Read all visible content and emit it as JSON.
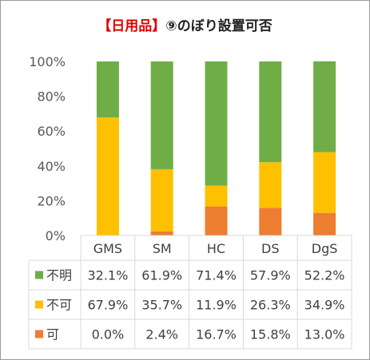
{
  "chart_data": {
    "type": "bar",
    "stacked": true,
    "percent": true,
    "title_prefix": "【日用品】",
    "title_main": "⑨のぼり設置可否",
    "categories": [
      "GMS",
      "SM",
      "HC",
      "DS",
      "DgS"
    ],
    "series": [
      {
        "name": "可",
        "color": "#ed7d31",
        "values": [
          0.0,
          2.4,
          16.7,
          15.8,
          13.0
        ],
        "labels": [
          "0.0%",
          "2.4%",
          "16.7%",
          "15.8%",
          "13.0%"
        ]
      },
      {
        "name": "不可",
        "color": "#ffc000",
        "values": [
          67.9,
          35.7,
          11.9,
          26.3,
          34.9
        ],
        "labels": [
          "67.9%",
          "35.7%",
          "11.9%",
          "26.3%",
          "34.9%"
        ]
      },
      {
        "name": "不明",
        "color": "#70ad47",
        "values": [
          32.1,
          61.9,
          71.4,
          57.9,
          52.2
        ],
        "labels": [
          "32.1%",
          "61.9%",
          "71.4%",
          "57.9%",
          "52.2%"
        ]
      }
    ],
    "table_row_order": [
      "不明",
      "不可",
      "可"
    ],
    "yticks": [
      "0%",
      "20%",
      "40%",
      "60%",
      "80%",
      "100%"
    ],
    "ylim": [
      0,
      100
    ],
    "grid": false,
    "legend": "data-table"
  }
}
